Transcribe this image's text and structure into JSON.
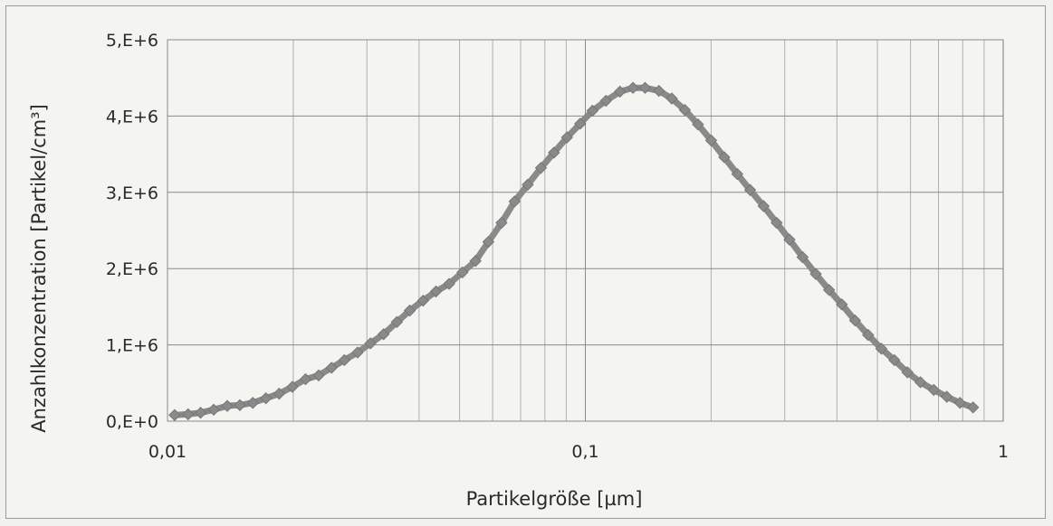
{
  "chart_data": {
    "type": "scatter",
    "title": "",
    "xlabel": "Partikelgröße [µm]",
    "ylabel": "Anzahlkonzentration [Partikel/cm³]",
    "x_scale": "log",
    "xlim": [
      0.01,
      1
    ],
    "ylim": [
      0,
      5000000
    ],
    "x_tick_labels": [
      "0,01",
      "0,1",
      "1"
    ],
    "y_tick_labels": [
      "0,E+0",
      "1,E+6",
      "2,E+6",
      "3,E+6",
      "4,E+6",
      "5,E+6"
    ],
    "grid": true,
    "legend": "none",
    "series_color": "#8a8a8a",
    "marker": "diamond",
    "series": [
      {
        "x": [
          0.0104,
          0.0112,
          0.012,
          0.0129,
          0.0139,
          0.0149,
          0.016,
          0.0172,
          0.0185,
          0.0199,
          0.0214,
          0.023,
          0.0247,
          0.0265,
          0.0285,
          0.0306,
          0.0329,
          0.0354,
          0.038,
          0.0409,
          0.0439,
          0.0472,
          0.0508,
          0.0546,
          0.0586,
          0.063,
          0.0677,
          0.0728,
          0.0783,
          0.0841,
          0.0904,
          0.0972,
          0.104,
          0.112,
          0.121,
          0.13,
          0.139,
          0.15,
          0.161,
          0.173,
          0.186,
          0.2,
          0.215,
          0.231,
          0.248,
          0.267,
          0.287,
          0.308,
          0.331,
          0.356,
          0.383,
          0.411,
          0.442,
          0.475,
          0.511,
          0.549,
          0.59,
          0.634,
          0.682,
          0.733,
          0.788,
          0.847
        ],
        "y": [
          80000,
          90000,
          110000,
          150000,
          200000,
          210000,
          240000,
          300000,
          360000,
          450000,
          550000,
          600000,
          700000,
          800000,
          900000,
          1020000,
          1140000,
          1300000,
          1450000,
          1580000,
          1700000,
          1800000,
          1950000,
          2100000,
          2350000,
          2600000,
          2880000,
          3100000,
          3320000,
          3520000,
          3720000,
          3900000,
          4070000,
          4200000,
          4320000,
          4370000,
          4370000,
          4330000,
          4230000,
          4080000,
          3890000,
          3680000,
          3460000,
          3240000,
          3030000,
          2820000,
          2600000,
          2380000,
          2150000,
          1930000,
          1720000,
          1530000,
          1320000,
          1130000,
          950000,
          800000,
          640000,
          510000,
          410000,
          320000,
          240000,
          180000
        ]
      }
    ]
  }
}
